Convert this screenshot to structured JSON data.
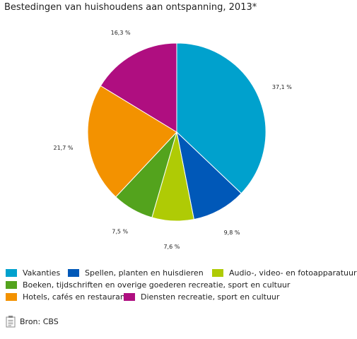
{
  "chart_data": {
    "type": "pie",
    "title": "Bestedingen van huishoudens aan ontspanning, 2013*",
    "slices": [
      {
        "name": "Vakanties",
        "value": 37.1,
        "label": "37,1 %",
        "color": "#00a1cd"
      },
      {
        "name": "Spellen, planten en huisdieren",
        "value": 9.8,
        "label": "9,8 %",
        "color": "#0058b8"
      },
      {
        "name": "Audio-, video- en fotoapparatuur",
        "value": 7.6,
        "label": "7,6 %",
        "color": "#afcb05"
      },
      {
        "name": "Boeken, tijdschriften en overige goederen recreatie, sport en cultuur",
        "value": 7.5,
        "label": "7,5 %",
        "color": "#53a31d"
      },
      {
        "name": "Hotels, cafés en restaurants",
        "value": 21.7,
        "label": "21,7 %",
        "color": "#f39200"
      },
      {
        "name": "Diensten recreatie, sport en cultuur",
        "value": 16.3,
        "label": "16,3 %",
        "color": "#af0e80"
      }
    ],
    "legend_position": "bottom"
  },
  "source": {
    "text": "Bron: CBS",
    "icon": "document-icon"
  }
}
